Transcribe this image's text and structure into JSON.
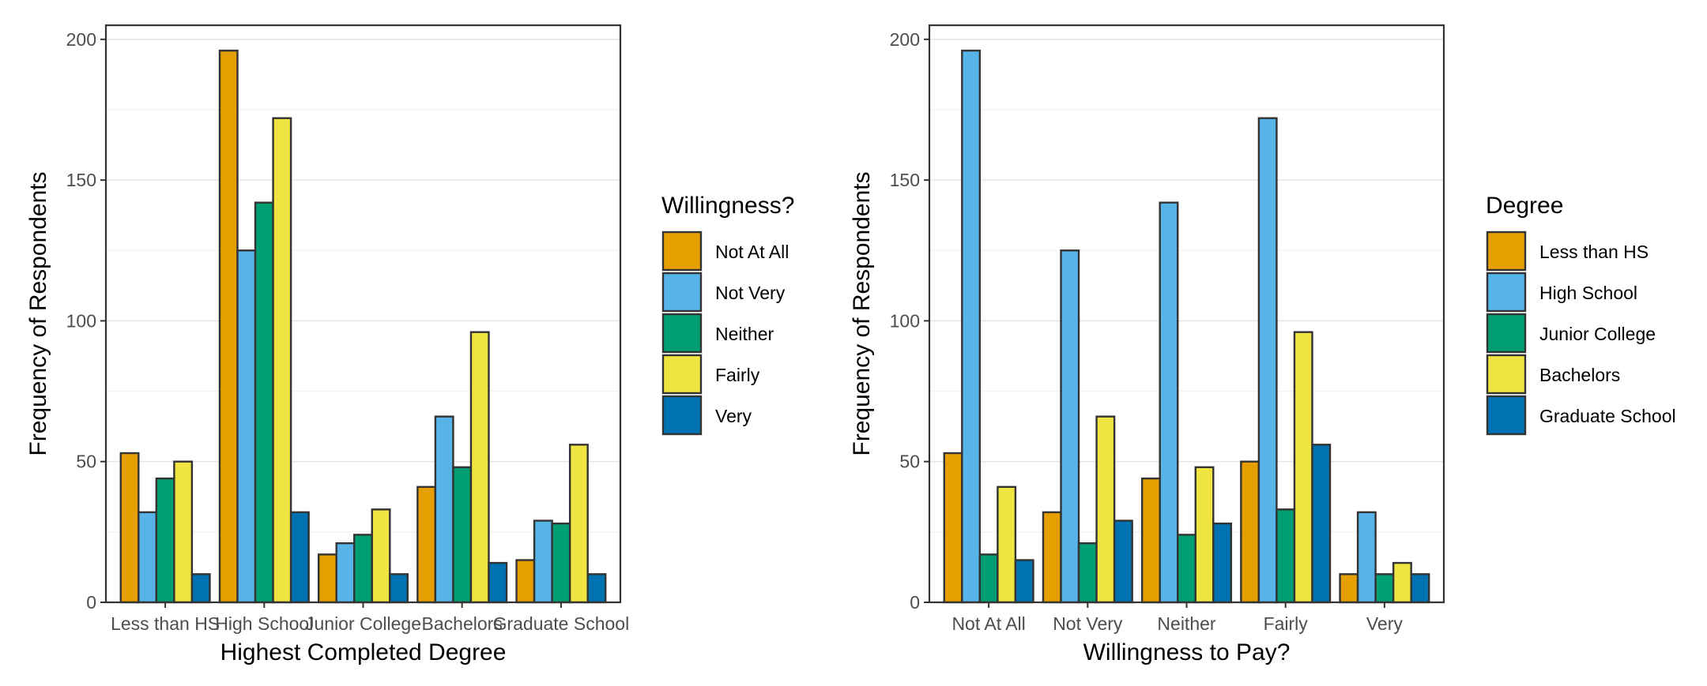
{
  "chart_data": [
    {
      "type": "bar",
      "xlabel": "Highest Completed Degree",
      "ylabel": "Frequency of Respondents",
      "ylim": [
        0,
        205
      ],
      "yticks": [
        0,
        50,
        100,
        150,
        200
      ],
      "grid": true,
      "legend_position": "right",
      "legend_title": "Willingness?",
      "categories": [
        "Less than HS",
        "High School",
        "Junior College",
        "Bachelors",
        "Graduate School"
      ],
      "series": [
        {
          "name": "Not At All",
          "color": "#E69F00",
          "values": [
            53,
            196,
            17,
            41,
            15
          ]
        },
        {
          "name": "Not Very",
          "color": "#56B4E9",
          "values": [
            32,
            125,
            21,
            66,
            29
          ]
        },
        {
          "name": "Neither",
          "color": "#009E73",
          "values": [
            44,
            142,
            24,
            48,
            28
          ]
        },
        {
          "name": "Fairly",
          "color": "#F0E442",
          "values": [
            50,
            172,
            33,
            96,
            56
          ]
        },
        {
          "name": "Very",
          "color": "#0072B2",
          "values": [
            10,
            32,
            10,
            14,
            10
          ]
        }
      ]
    },
    {
      "type": "bar",
      "xlabel": "Willingness to Pay?",
      "ylabel": "Frequency of Respondents",
      "ylim": [
        0,
        205
      ],
      "yticks": [
        0,
        50,
        100,
        150,
        200
      ],
      "grid": true,
      "legend_position": "right",
      "legend_title": "Degree",
      "categories": [
        "Not At All",
        "Not Very",
        "Neither",
        "Fairly",
        "Very"
      ],
      "series": [
        {
          "name": "Less than HS",
          "color": "#E69F00",
          "values": [
            53,
            32,
            44,
            50,
            10
          ]
        },
        {
          "name": "High School",
          "color": "#56B4E9",
          "values": [
            196,
            125,
            142,
            172,
            32
          ]
        },
        {
          "name": "Junior College",
          "color": "#009E73",
          "values": [
            17,
            21,
            24,
            33,
            10
          ]
        },
        {
          "name": "Bachelors",
          "color": "#F0E442",
          "values": [
            41,
            66,
            48,
            96,
            14
          ]
        },
        {
          "name": "Graduate School",
          "color": "#0072B2",
          "values": [
            15,
            29,
            28,
            56,
            10
          ]
        }
      ]
    }
  ]
}
